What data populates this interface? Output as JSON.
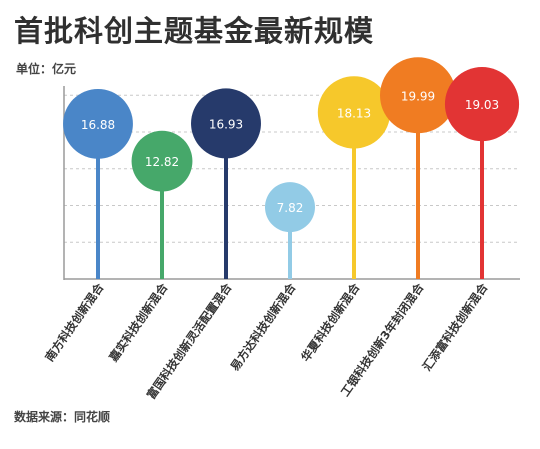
{
  "title": "首批科创主题基金最新规模",
  "unit_label": "单位：亿元",
  "source_label": "数据来源：同花顺",
  "chart_data": {
    "type": "bubble-lollipop",
    "title": "首批科创主题基金最新规模",
    "unit": "亿元",
    "ylim": [
      0,
      21
    ],
    "grid": true,
    "categories": [
      "南方科技创新混合",
      "嘉实科技创新混合",
      "富国科技创新灵活配置混合",
      "易方达科技创新混合",
      "华夏科技创新混合",
      "工银科技创新3年封闭混合",
      "汇添富科技创新混合"
    ],
    "values": [
      16.88,
      12.82,
      16.93,
      7.82,
      18.13,
      19.99,
      19.03
    ],
    "value_labels": [
      "16.88",
      "12.82",
      "16.93",
      "7.82",
      "18.13",
      "19.99",
      "19.03"
    ],
    "colors": [
      "#4a86c8",
      "#46a86a",
      "#263a6b",
      "#92cbe6",
      "#f6c82b",
      "#f07c22",
      "#e23434"
    ],
    "label_color": "#ffffff",
    "axis_color": "#9a9a9a",
    "grid_color": "#c8c8c8"
  }
}
